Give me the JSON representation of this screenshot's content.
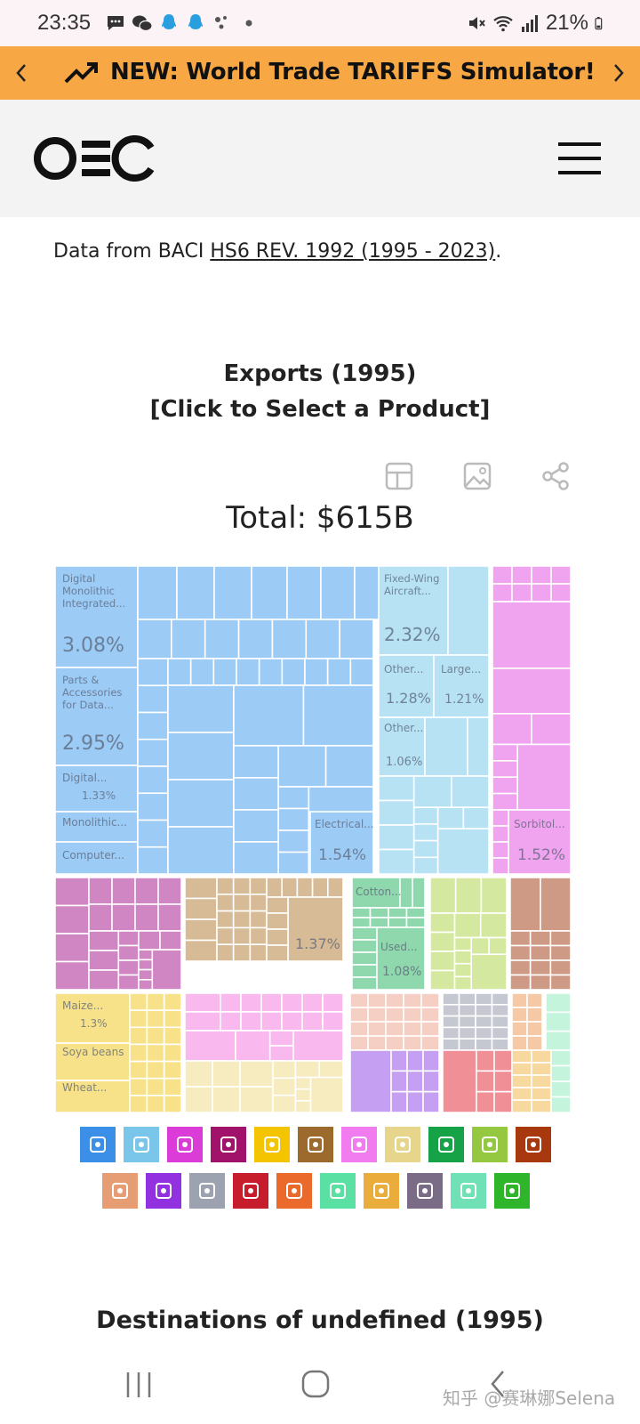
{
  "status_bar": {
    "time": "23:35",
    "battery": "21%",
    "left_icons": [
      "chat-bubble-icon",
      "wechat-icon",
      "qq-icon",
      "qq-icon",
      "dots-app-icon",
      "dot-icon"
    ],
    "right_icons": [
      "mute-icon",
      "wifi-icon",
      "signal-icon",
      "battery-icon"
    ]
  },
  "banner": {
    "text": "NEW: World Trade TARIFFS Simulator!",
    "color": "#f7a844"
  },
  "header": {
    "logo": "OEC"
  },
  "data_source": {
    "prefix": "Data from BACI ",
    "link": "HS6 REV. 1992 (1995 - 2023)",
    "suffix": "."
  },
  "chart": {
    "title_line1": "Exports (1995)",
    "title_line2": "[Click to Select a Product]",
    "total": "Total: $615B"
  },
  "toolbar": [
    "table-icon",
    "image-icon",
    "share-icon"
  ],
  "chart_data": {
    "type": "treemap",
    "title": "Exports (1995)",
    "total": "$615B",
    "labeled_tiles": [
      {
        "label": "Digital Monolithic Integrated...",
        "share": "3.08%",
        "sector": "Machines"
      },
      {
        "label": "Parts & Accessories for Data...",
        "share": "2.95%",
        "sector": "Machines"
      },
      {
        "label": "Digital...",
        "share": "1.33%",
        "sector": "Machines"
      },
      {
        "label": "Monolithic...",
        "share": "",
        "sector": "Machines"
      },
      {
        "label": "Computer...",
        "share": "",
        "sector": "Machines"
      },
      {
        "label": "Electrical...",
        "share": "1.54%",
        "sector": "Machines"
      },
      {
        "label": "Fixed-Wing Aircraft...",
        "share": "2.32%",
        "sector": "Transportation"
      },
      {
        "label": "Other...",
        "share": "1.28%",
        "sector": "Transportation"
      },
      {
        "label": "Large...",
        "share": "1.21%",
        "sector": "Transportation"
      },
      {
        "label": "Other...",
        "share": "1.06%",
        "sector": "Transportation"
      },
      {
        "label": "Sorbitol...",
        "share": "1.52%",
        "sector": "Chemical Products"
      },
      {
        "label": "",
        "share": "1.37%",
        "sector": "Animal Products"
      },
      {
        "label": "Cotton...",
        "share": "",
        "sector": "Textiles"
      },
      {
        "label": "Used...",
        "share": "1.08%",
        "sector": "Textiles"
      },
      {
        "label": "Maize...",
        "share": "1.3%",
        "sector": "Vegetable Products"
      },
      {
        "label": "Soya beans",
        "share": "",
        "sector": "Vegetable Products"
      },
      {
        "label": "Wheat...",
        "share": "",
        "sector": "Vegetable Products"
      }
    ],
    "sector_colors": {
      "Machines": "#9ccbf6",
      "Transportation": "#b6e2f4",
      "Chemical Products": "#f0a3ee",
      "Plastics and Rubbers": "#cf86c2",
      "Animal Products": "#d6bb96",
      "Textiles": "#8fd7ac",
      "Vegetable Products": "#f7e28a",
      "Mineral Products": "#f9b8ee",
      "Foodstuffs": "#f7ebc0",
      "Paper Goods": "#f5cfc3",
      "Instruments": "#c5c8d0",
      "Metals": "#f5c8a6",
      "Weapons": "#d5e8a0",
      "Wood Products": "#c59ff2",
      "Stone And Glass": "#f08f96"
    }
  },
  "legend_row1": [
    {
      "name": "gear-icon",
      "color": "#3b8fe6"
    },
    {
      "name": "road-icon",
      "color": "#79c6ea"
    },
    {
      "name": "flask-icon",
      "color": "#db3cd8"
    },
    {
      "name": "gauge-icon",
      "color": "#a1136a"
    },
    {
      "name": "orange-icon",
      "color": "#f5c400"
    },
    {
      "name": "anvil-icon",
      "color": "#9d6a2e"
    },
    {
      "name": "recycle-icon",
      "color": "#f07cef"
    },
    {
      "name": "scroll-icon",
      "color": "#e6d58a"
    },
    {
      "name": "shirt-icon",
      "color": "#16a246"
    },
    {
      "name": "wheat-icon",
      "color": "#95c841"
    },
    {
      "name": "pickaxe-icon",
      "color": "#a8390e"
    }
  ],
  "legend_row2": [
    {
      "name": "pig-icon",
      "color": "#e79d74"
    },
    {
      "name": "diamond-icon",
      "color": "#9131df"
    },
    {
      "name": "box-icon",
      "color": "#9da2b0"
    },
    {
      "name": "gun-icon",
      "color": "#c71c2b"
    },
    {
      "name": "stone-icon",
      "color": "#ea6a2b"
    },
    {
      "name": "hide-icon",
      "color": "#59e0a2"
    },
    {
      "name": "can-icon",
      "color": "#eaad3c"
    },
    {
      "name": "easel-icon",
      "color": "#7a6b86"
    },
    {
      "name": "bullets-icon",
      "color": "#70e0b6"
    },
    {
      "name": "shoe-icon",
      "color": "#2fb52a"
    }
  ],
  "destinations": {
    "title": "Destinations of undefined (1995)"
  },
  "watermark": "知乎 @赛琳娜Selena"
}
